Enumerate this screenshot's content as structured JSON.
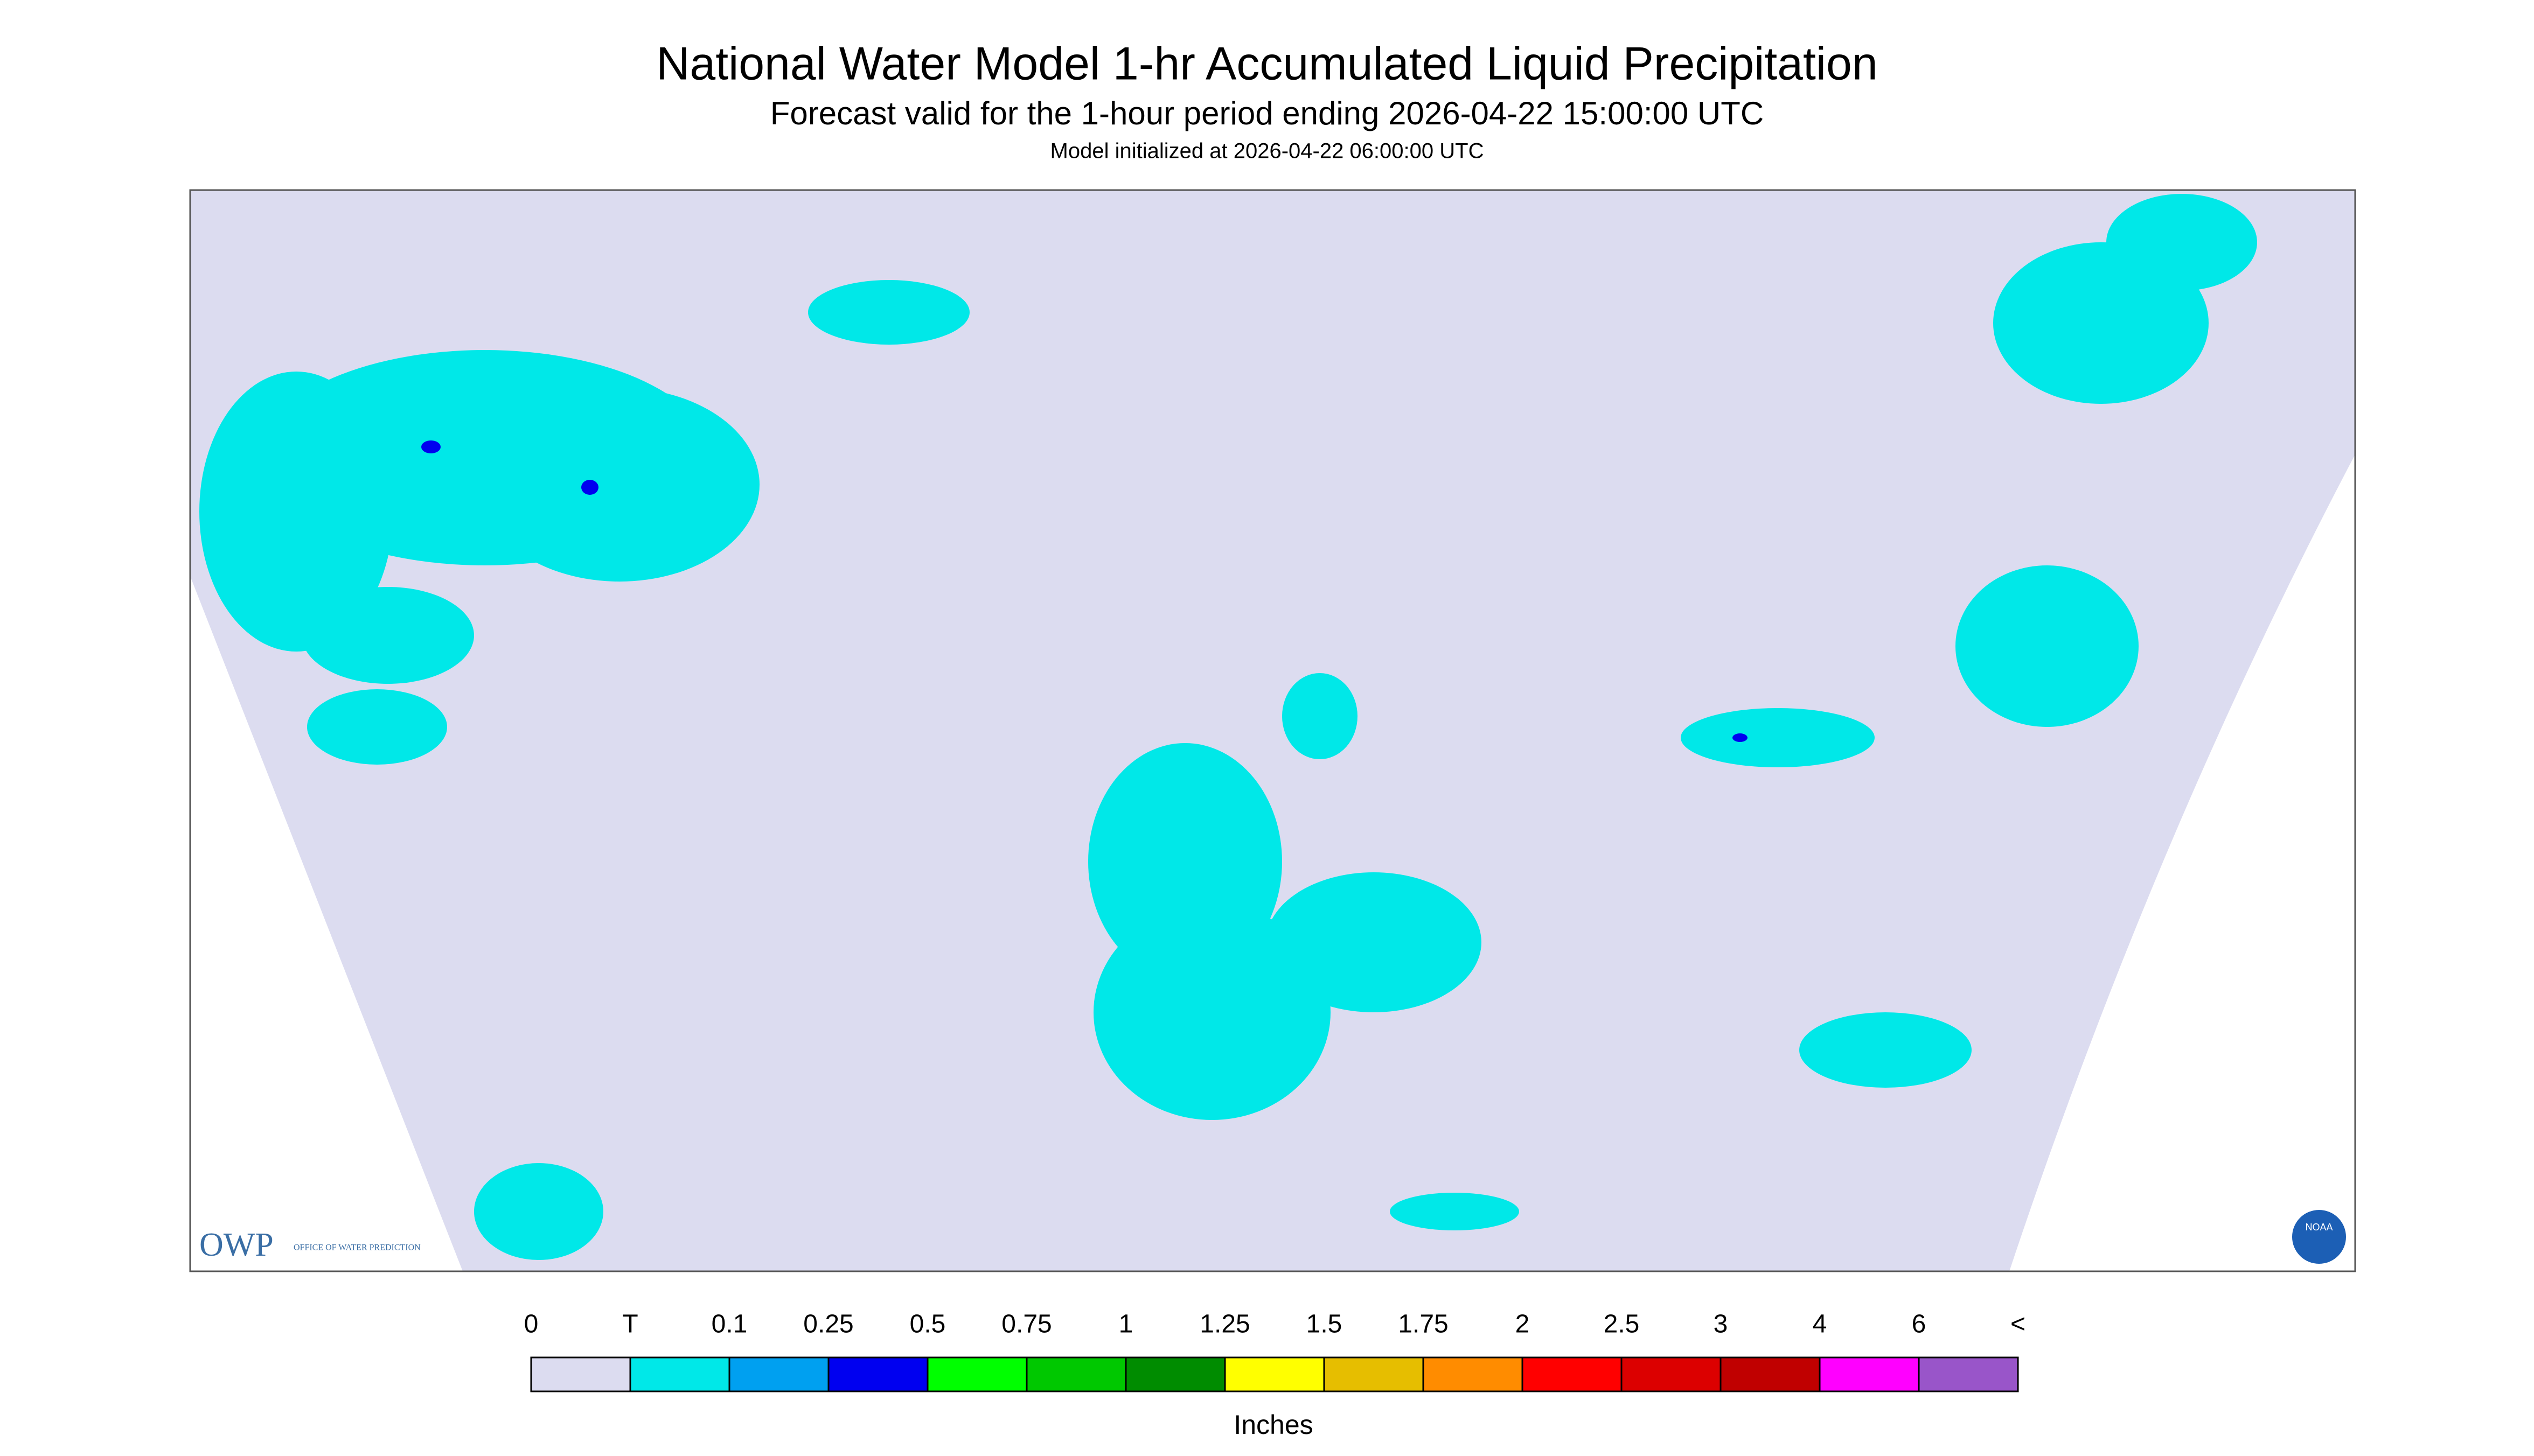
{
  "header": {
    "title": "National Water Model 1-hr Accumulated Liquid Precipitation",
    "subtitle": "Forecast valid for the 1-hour period ending 2026-04-22 15:00:00 UTC",
    "init": "Model initialized at 2026-04-22 06:00:00 UTC"
  },
  "legend": {
    "labels": [
      "0",
      "T",
      "0.1",
      "0.25",
      "0.5",
      "0.75",
      "1",
      "1.25",
      "1.5",
      "1.75",
      "2",
      "2.5",
      "3",
      "4",
      "6",
      "<"
    ],
    "colors": [
      "#dcdcf0",
      "#00e8e8",
      "#00a0f0",
      "#0000f0",
      "#00ff00",
      "#00c800",
      "#008c00",
      "#ffff00",
      "#e6be00",
      "#ff8c00",
      "#ff0000",
      "#dc0000",
      "#c00000",
      "#ff00ff",
      "#9955c9"
    ],
    "unit": "Inches"
  },
  "logo": {
    "abbr": "OWP",
    "text": "OFFICE OF WATER PREDICTION",
    "agency": "NOAA"
  }
}
